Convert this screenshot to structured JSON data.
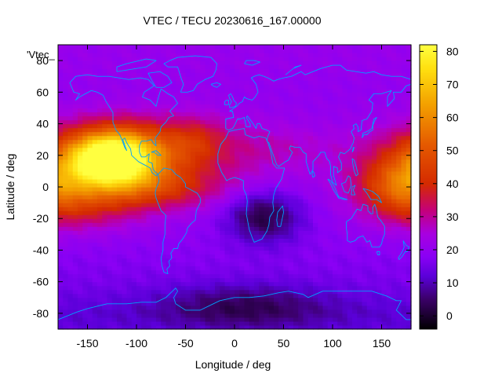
{
  "chart_data": {
    "type": "heatmap",
    "title": "VTEC / TECU 20230616_167.00000",
    "xlabel": "Longitude / deg",
    "ylabel": "Latitude / deg",
    "legend_key": "'Vtec_",
    "xlim": [
      -180,
      180
    ],
    "ylim": [
      -90,
      90
    ],
    "x_ticks": [
      -150,
      -100,
      -50,
      0,
      50,
      100,
      150
    ],
    "y_ticks": [
      -80,
      -60,
      -40,
      -20,
      0,
      20,
      40,
      60,
      80
    ],
    "colorbar": {
      "range": [
        -4,
        82
      ],
      "ticks": [
        0,
        10,
        20,
        30,
        40,
        50,
        60,
        70,
        80
      ],
      "palette": [
        {
          "value": -4,
          "color": "#000000"
        },
        {
          "value": 5,
          "color": "#3a0066"
        },
        {
          "value": 12,
          "color": "#5a00d8"
        },
        {
          "value": 18,
          "color": "#8a00f5"
        },
        {
          "value": 25,
          "color": "#a800e0"
        },
        {
          "value": 32,
          "color": "#c4007a"
        },
        {
          "value": 40,
          "color": "#d42a00"
        },
        {
          "value": 52,
          "color": "#e55a00"
        },
        {
          "value": 64,
          "color": "#f3a000"
        },
        {
          "value": 75,
          "color": "#ffe010"
        },
        {
          "value": 82,
          "color": "#ffff40"
        }
      ]
    },
    "coastline_color": "#00a0ff",
    "field_model": {
      "background_lat": [
        [
          -90,
          13
        ],
        [
          -80,
          12
        ],
        [
          -60,
          16
        ],
        [
          -40,
          18
        ],
        [
          -20,
          20
        ],
        [
          0,
          22
        ],
        [
          20,
          21
        ],
        [
          40,
          20
        ],
        [
          60,
          20
        ],
        [
          80,
          21
        ],
        [
          90,
          21
        ]
      ],
      "features": [
        {
          "lon": -125,
          "lat": 18,
          "lon_sigma": 32,
          "lat_sigma": 12,
          "amp": 62,
          "note": "peak ~80 TECU"
        },
        {
          "lon": -95,
          "lat": 0,
          "lon_sigma": 55,
          "lat_sigma": 10,
          "amp": 20
        },
        {
          "lon": -95,
          "lat": 25,
          "lon_sigma": 75,
          "lat_sigma": 14,
          "amp": 20
        },
        {
          "lon": 170,
          "lat": 2,
          "lon_sigma": 30,
          "lat_sigma": 14,
          "amp": 28
        },
        {
          "lon": -150,
          "lat": -15,
          "lon_sigma": 40,
          "lat_sigma": 10,
          "amp": 10
        },
        {
          "lon": 30,
          "lat": -18,
          "lon_sigma": 28,
          "lat_sigma": 12,
          "amp": -18,
          "note": "minimum ~0 TECU over southern Africa"
        },
        {
          "lon": 10,
          "lat": -75,
          "lon_sigma": 60,
          "lat_sigma": 10,
          "amp": -10
        },
        {
          "lon": 60,
          "lat": 25,
          "lon_sigma": 40,
          "lat_sigma": 10,
          "amp": 4
        },
        {
          "lon": -40,
          "lat": 30,
          "lon_sigma": 20,
          "lat_sigma": 10,
          "amp": 8
        }
      ]
    }
  }
}
